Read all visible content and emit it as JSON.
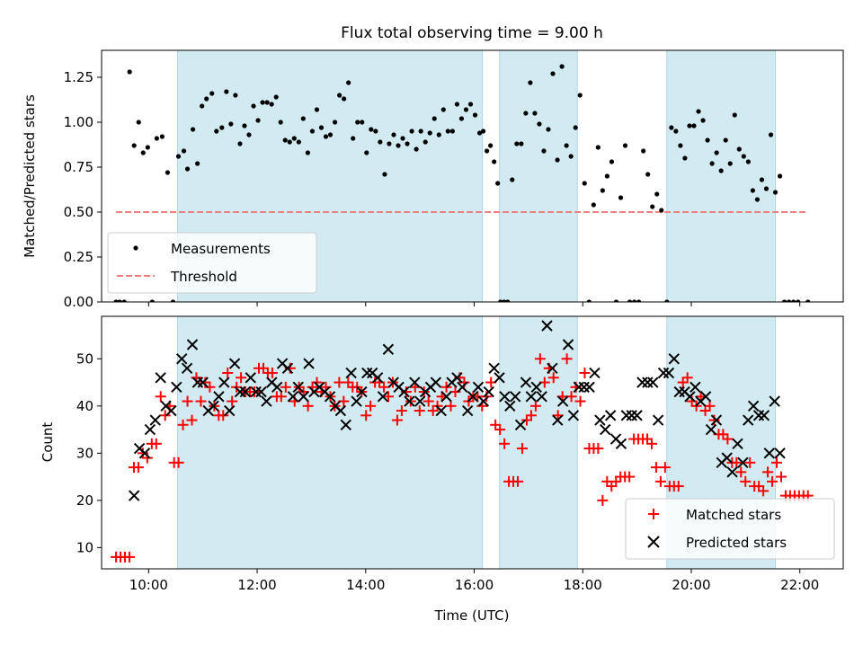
{
  "chart_data": [
    {
      "type": "scatter",
      "title": "Flux total observing time = 9.00 h",
      "ylabel": "Matched/Predicted stars",
      "xlim": [
        "09:08",
        "22:48"
      ],
      "ylim": [
        0,
        1.4
      ],
      "yticks": [
        "0.00",
        "0.25",
        "0.50",
        "0.75",
        "1.00",
        "1.25"
      ],
      "shaded_intervals": [
        [
          "10:32",
          "16:09"
        ],
        [
          "16:28",
          "17:54"
        ],
        [
          "19:33",
          "21:33"
        ]
      ],
      "shade_color": "#add8e6",
      "legend_position": "lower-left",
      "series": [
        {
          "name": "Measurements",
          "color": "#000000",
          "marker": "dot",
          "points": [
            [
              "09:24",
              0
            ],
            [
              "09:28",
              0
            ],
            [
              "09:33",
              0
            ],
            [
              "09:39",
              1.28
            ],
            [
              "09:44",
              0.87
            ],
            [
              "09:49",
              1.0
            ],
            [
              "09:54",
              0.83
            ],
            [
              "09:59",
              0.86
            ],
            [
              "10:04",
              0
            ],
            [
              "10:09",
              0.91
            ],
            [
              "10:15",
              0.92
            ],
            [
              "10:21",
              0.72
            ],
            [
              "10:27",
              0
            ],
            [
              "10:33",
              0.81
            ],
            [
              "10:39",
              0.84
            ],
            [
              "10:43",
              0.74
            ],
            [
              "10:49",
              0.96
            ],
            [
              "10:54",
              0.77
            ],
            [
              "10:59",
              1.09
            ],
            [
              "11:04",
              1.13
            ],
            [
              "11:10",
              1.16
            ],
            [
              "11:15",
              0.95
            ],
            [
              "11:21",
              0.97
            ],
            [
              "11:26",
              1.17
            ],
            [
              "11:31",
              0.99
            ],
            [
              "11:36",
              1.15
            ],
            [
              "11:41",
              0.88
            ],
            [
              "11:46",
              0.98
            ],
            [
              "11:51",
              0.93
            ],
            [
              "11:56",
              1.09
            ],
            [
              "12:01",
              1.01
            ],
            [
              "12:06",
              1.11
            ],
            [
              "12:11",
              1.11
            ],
            [
              "12:16",
              1.1
            ],
            [
              "12:21",
              1.14
            ],
            [
              "12:26",
              1.0
            ],
            [
              "12:31",
              0.9
            ],
            [
              "12:36",
              0.89
            ],
            [
              "12:41",
              0.91
            ],
            [
              "12:46",
              0.89
            ],
            [
              "12:51",
              1.02
            ],
            [
              "12:56",
              0.83
            ],
            [
              "13:01",
              0.95
            ],
            [
              "13:06",
              1.07
            ],
            [
              "13:11",
              0.97
            ],
            [
              "13:16",
              0.92
            ],
            [
              "13:21",
              0.93
            ],
            [
              "13:26",
              1.0
            ],
            [
              "13:31",
              1.15
            ],
            [
              "13:36",
              1.13
            ],
            [
              "13:41",
              1.22
            ],
            [
              "13:46",
              0.91
            ],
            [
              "13:51",
              1.0
            ],
            [
              "13:56",
              1.0
            ],
            [
              "14:01",
              0.83
            ],
            [
              "14:06",
              0.96
            ],
            [
              "14:11",
              0.95
            ],
            [
              "14:16",
              0.89
            ],
            [
              "14:21",
              0.71
            ],
            [
              "14:26",
              0.88
            ],
            [
              "14:31",
              0.93
            ],
            [
              "14:36",
              0.87
            ],
            [
              "14:41",
              0.91
            ],
            [
              "14:46",
              0.88
            ],
            [
              "14:51",
              0.95
            ],
            [
              "14:56",
              0.85
            ],
            [
              "15:01",
              0.95
            ],
            [
              "15:06",
              0.89
            ],
            [
              "15:11",
              0.94
            ],
            [
              "15:16",
              1.02
            ],
            [
              "15:21",
              0.93
            ],
            [
              "15:26",
              1.07
            ],
            [
              "15:31",
              0.95
            ],
            [
              "15:36",
              0.95
            ],
            [
              "15:41",
              1.1
            ],
            [
              "15:46",
              1.02
            ],
            [
              "15:51",
              1.07
            ],
            [
              "15:56",
              1.1
            ],
            [
              "16:01",
              1.04
            ],
            [
              "16:06",
              0.94
            ],
            [
              "16:10",
              0.95
            ],
            [
              "16:14",
              0.84
            ],
            [
              "16:18",
              0.87
            ],
            [
              "16:22",
              0.78
            ],
            [
              "16:26",
              0.66
            ],
            [
              "16:29",
              0
            ],
            [
              "16:33",
              0
            ],
            [
              "16:37",
              0
            ],
            [
              "16:42",
              0.68
            ],
            [
              "16:47",
              0.88
            ],
            [
              "16:52",
              0.88
            ],
            [
              "16:57",
              1.05
            ],
            [
              "17:02",
              1.22
            ],
            [
              "17:07",
              1.05
            ],
            [
              "17:12",
              0.99
            ],
            [
              "17:17",
              0.84
            ],
            [
              "17:22",
              0.96
            ],
            [
              "17:27",
              1.27
            ],
            [
              "17:32",
              0.79
            ],
            [
              "17:37",
              1.31
            ],
            [
              "17:42",
              0.87
            ],
            [
              "17:47",
              0.81
            ],
            [
              "17:52",
              0.97
            ],
            [
              "17:57",
              1.15
            ],
            [
              "18:02",
              0.66
            ],
            [
              "18:07",
              0
            ],
            [
              "18:12",
              0.54
            ],
            [
              "18:17",
              0.86
            ],
            [
              "18:22",
              0.62
            ],
            [
              "18:27",
              0.7
            ],
            [
              "18:32",
              0.78
            ],
            [
              "18:37",
              0
            ],
            [
              "18:42",
              0.58
            ],
            [
              "18:47",
              0.87
            ],
            [
              "18:52",
              0
            ],
            [
              "18:57",
              0
            ],
            [
              "19:02",
              0
            ],
            [
              "19:07",
              0.84
            ],
            [
              "19:12",
              0.71
            ],
            [
              "19:17",
              0.53
            ],
            [
              "19:22",
              0.6
            ],
            [
              "19:27",
              0.51
            ],
            [
              "19:33",
              0
            ],
            [
              "19:38",
              0.97
            ],
            [
              "19:43",
              0.95
            ],
            [
              "19:48",
              0.87
            ],
            [
              "19:53",
              0.8
            ],
            [
              "19:58",
              0.98
            ],
            [
              "20:03",
              0.98
            ],
            [
              "20:08",
              1.06
            ],
            [
              "20:13",
              1.01
            ],
            [
              "20:18",
              0.9
            ],
            [
              "20:23",
              0.77
            ],
            [
              "20:28",
              0.83
            ],
            [
              "20:33",
              0.73
            ],
            [
              "20:38",
              0.9
            ],
            [
              "20:43",
              0.77
            ],
            [
              "20:48",
              1.04
            ],
            [
              "20:53",
              0.85
            ],
            [
              "20:58",
              0.81
            ],
            [
              "21:03",
              0.78
            ],
            [
              "21:08",
              0.62
            ],
            [
              "21:13",
              0.57
            ],
            [
              "21:18",
              0.68
            ],
            [
              "21:23",
              0.63
            ],
            [
              "21:28",
              0.93
            ],
            [
              "21:33",
              0.61
            ],
            [
              "21:38",
              0.7
            ],
            [
              "21:43",
              0
            ],
            [
              "21:48",
              0
            ],
            [
              "21:53",
              0
            ],
            [
              "21:58",
              0
            ],
            [
              "22:09",
              0
            ]
          ]
        },
        {
          "name": "Threshold",
          "color": "#f08080",
          "line_style": "dashed",
          "points": [
            [
              "09:24",
              0.5
            ],
            [
              "22:09",
              0.5
            ]
          ]
        }
      ]
    },
    {
      "type": "scatter",
      "xlabel": "Time (UTC)",
      "ylabel": "Count",
      "xlim": [
        "09:08",
        "22:48"
      ],
      "ylim": [
        5.5,
        59
      ],
      "yticks": [
        "10",
        "20",
        "30",
        "40",
        "50"
      ],
      "xticks": [
        "10:00",
        "12:00",
        "14:00",
        "16:00",
        "18:00",
        "20:00",
        "22:00"
      ],
      "shaded_intervals": [
        [
          "10:32",
          "16:09"
        ],
        [
          "16:28",
          "17:54"
        ],
        [
          "19:33",
          "21:33"
        ]
      ],
      "legend_position": "lower-right",
      "series": [
        {
          "name": "Matched stars",
          "color": "#ff0000",
          "marker": "plus",
          "values": [
            8,
            8,
            8,
            8,
            27,
            27,
            30,
            29,
            32,
            32,
            42,
            38,
            40,
            28,
            28,
            36,
            41,
            37,
            46,
            41,
            45,
            44,
            40,
            38,
            38,
            47,
            41,
            44,
            46,
            43,
            43,
            43,
            48,
            48,
            47,
            47,
            42,
            42,
            44,
            48,
            41,
            44,
            43,
            40,
            44,
            45,
            43,
            44,
            42,
            40,
            45,
            41,
            45,
            44,
            44,
            43,
            38,
            40,
            45,
            45,
            44,
            42,
            45,
            37,
            39,
            43,
            41,
            44,
            39,
            43,
            41,
            39,
            40,
            42,
            44,
            40,
            43,
            46,
            45,
            41,
            42,
            42,
            40,
            42,
            45,
            36,
            35,
            32,
            24,
            24,
            24,
            31,
            37,
            38,
            40,
            50,
            45,
            48,
            46,
            38,
            42,
            50,
            42,
            44,
            41,
            47,
            31,
            31,
            31,
            20,
            24,
            23,
            24,
            25,
            25,
            25,
            33,
            33,
            33,
            33,
            32,
            27,
            24,
            27,
            23,
            23,
            23,
            45,
            46,
            41,
            40,
            42,
            39,
            40,
            37,
            34,
            34,
            33,
            28,
            28,
            26,
            24,
            28,
            23,
            23,
            22,
            26,
            24,
            28,
            25,
            21,
            21,
            21,
            21,
            21,
            21
          ]
        },
        {
          "name": "Predicted stars",
          "color": "#000000",
          "marker": "x",
          "values": [
            21,
            31,
            30,
            35,
            37,
            46,
            40,
            39,
            44,
            50,
            48,
            53,
            45,
            45,
            39,
            40,
            42,
            45,
            39,
            49,
            43,
            43,
            46,
            43,
            43,
            41,
            45,
            44,
            49,
            48,
            42,
            44,
            42,
            49,
            43,
            44,
            43,
            42,
            40,
            39,
            36,
            47,
            41,
            43,
            47,
            47,
            46,
            42,
            52,
            45,
            44,
            43,
            41,
            45,
            41,
            43,
            44,
            45,
            39,
            42,
            45,
            46,
            44,
            39,
            42,
            44,
            41,
            43,
            48,
            46,
            42,
            40,
            42,
            36,
            45,
            42,
            44,
            42,
            57,
            48,
            37,
            41,
            53,
            38,
            44,
            44,
            44,
            47,
            37,
            35,
            38,
            33,
            32,
            38,
            38,
            38,
            45,
            45,
            45,
            37,
            47,
            47,
            50,
            43,
            43,
            42,
            44,
            41,
            42,
            35,
            37,
            28,
            29,
            26,
            32,
            28,
            37,
            40,
            38,
            38,
            30,
            41,
            30
          ]
        }
      ]
    }
  ]
}
